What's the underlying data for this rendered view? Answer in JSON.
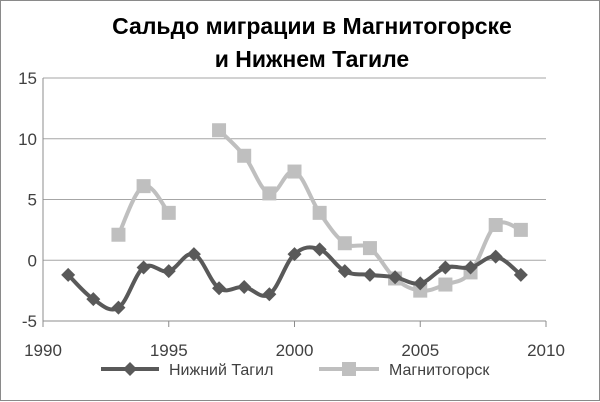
{
  "chart_data": {
    "type": "line",
    "title_lines": [
      "Сальдо миграции в Магнитогорске",
      "и Нижнем Тагиле"
    ],
    "xlabel": "",
    "ylabel": "",
    "xlim": [
      1990,
      2010
    ],
    "ylim": [
      -5,
      15
    ],
    "x_ticks": [
      1990,
      1995,
      2000,
      2005,
      2010
    ],
    "y_ticks": [
      -5,
      0,
      5,
      10,
      15
    ],
    "grid": "horizontal",
    "legend_position": "bottom",
    "series": [
      {
        "name": "Нижний Тагил",
        "color": "#595959",
        "marker": "diamond",
        "x": [
          1991,
          1992,
          1993,
          1994,
          1995,
          1996,
          1997,
          1998,
          1999,
          2000,
          2001,
          2002,
          2003,
          2004,
          2005,
          2006,
          2007,
          2008,
          2009
        ],
        "y": [
          -1.2,
          -3.2,
          -3.9,
          -0.6,
          -0.9,
          0.5,
          -2.3,
          -2.2,
          -2.8,
          0.5,
          0.9,
          -0.9,
          -1.2,
          -1.4,
          -1.9,
          -0.6,
          -0.6,
          0.3,
          -1.2
        ]
      },
      {
        "name": "Магнитогорск",
        "color": "#bfbfbf",
        "marker": "square",
        "x": [
          1993,
          1994,
          1995,
          1997,
          1998,
          1999,
          2000,
          2001,
          2002,
          2003,
          2004,
          2005,
          2006,
          2007,
          2008,
          2009
        ],
        "y": [
          2.1,
          6.1,
          3.9,
          10.7,
          8.6,
          5.5,
          7.3,
          3.9,
          1.4,
          1.0,
          -1.5,
          -2.5,
          -2.0,
          -1.0,
          2.9,
          2.5
        ]
      }
    ]
  }
}
